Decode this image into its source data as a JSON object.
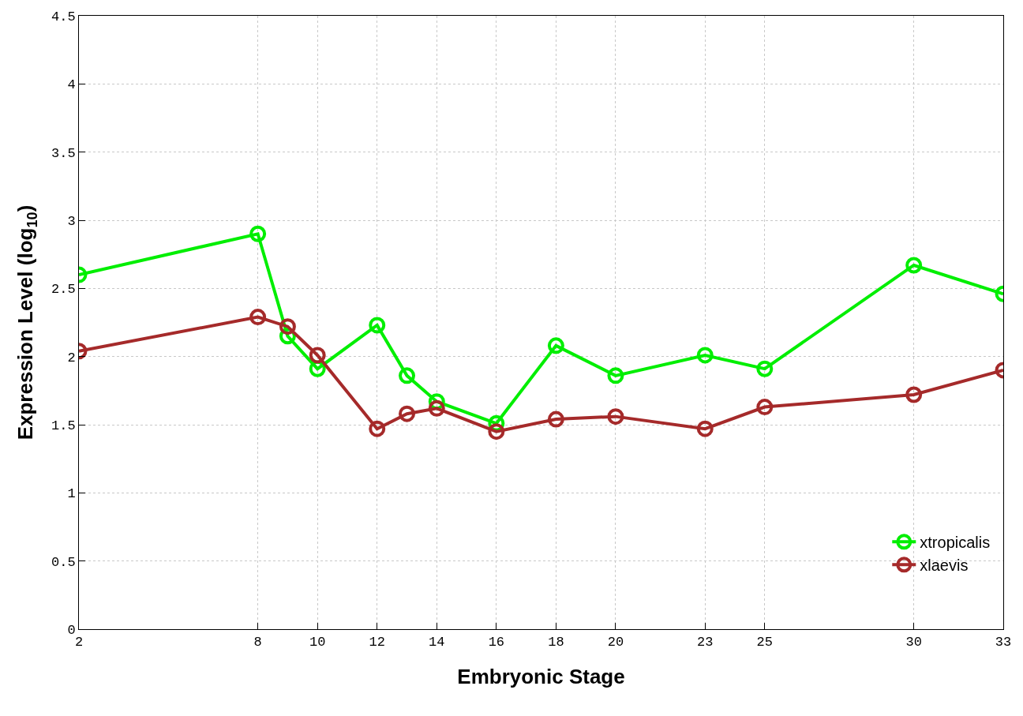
{
  "chart_data": {
    "type": "line",
    "xlabel": "Embryonic Stage",
    "ylabel": "Expression Level (log$_{10}$)",
    "x": [
      2,
      8,
      9,
      10,
      12,
      13,
      14,
      16,
      18,
      20,
      23,
      25,
      30,
      33
    ],
    "series": [
      {
        "name": "xtropicalis",
        "color": "#00ee00",
        "values": [
          2.6,
          2.9,
          2.15,
          1.91,
          2.23,
          1.86,
          1.67,
          1.51,
          2.08,
          1.86,
          2.01,
          1.91,
          2.67,
          2.46
        ]
      },
      {
        "name": "xlaevis",
        "color": "#a52a2a",
        "values": [
          2.04,
          2.29,
          2.22,
          2.01,
          1.47,
          1.58,
          1.62,
          1.45,
          1.54,
          1.56,
          1.47,
          1.63,
          1.72,
          1.9
        ]
      }
    ],
    "xlim": [
      2,
      33
    ],
    "xticks": [
      2,
      8,
      10,
      12,
      14,
      16,
      18,
      20,
      23,
      25,
      30,
      33
    ],
    "ylim": [
      0,
      4.5
    ],
    "yticks": [
      0,
      0.5,
      1,
      1.5,
      2,
      2.5,
      3,
      3.5,
      4,
      4.5
    ],
    "grid": true,
    "legend": "bottom right",
    "marker": "circle",
    "line_style": "solid"
  }
}
